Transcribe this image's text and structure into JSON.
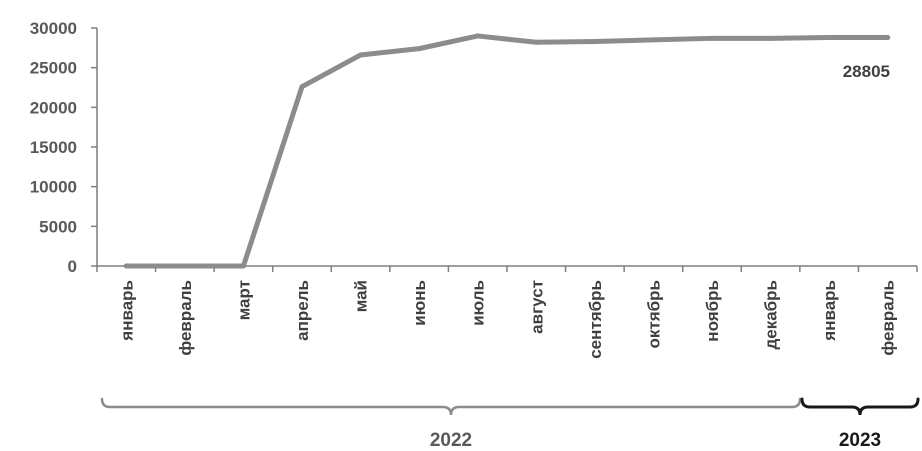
{
  "chart_data": {
    "type": "line",
    "categories": [
      "январь",
      "февраль",
      "март",
      "апрель",
      "май",
      "июнь",
      "июль",
      "август",
      "сентябрь",
      "октябрь",
      "ноябрь",
      "декабрь",
      "январь",
      "февраль"
    ],
    "series": [
      {
        "values": [
          0,
          0,
          0,
          22600,
          26600,
          27400,
          29000,
          28200,
          28300,
          28500,
          28700,
          28700,
          28800,
          28805
        ]
      }
    ],
    "ylim": [
      0,
      30000
    ],
    "yticks": [
      0,
      5000,
      10000,
      15000,
      20000,
      25000,
      30000
    ],
    "year_groups": [
      {
        "label": "2022",
        "from": 0,
        "to": 11
      },
      {
        "label": "2023",
        "from": 12,
        "to": 13
      }
    ],
    "annotation": "28805",
    "grid": false,
    "color": "#8c8c8c"
  }
}
